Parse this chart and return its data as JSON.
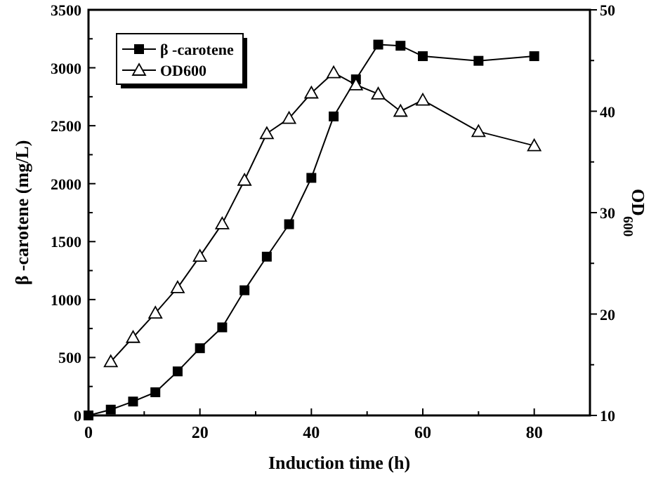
{
  "chart_data": {
    "type": "line",
    "xlabel": "Induction time (h)",
    "ylabel": "β -carotene (mg/L)",
    "y2label": "OD$_{600}$",
    "xlim": [
      0,
      90
    ],
    "xticks": [
      0,
      {
        "value": 10,
        "label": null
      },
      20,
      {
        "value": 30,
        "label": null
      },
      40,
      {
        "value": 50,
        "label": null
      },
      60,
      {
        "value": 70,
        "label": null
      },
      80,
      {
        "value": 90,
        "label": null
      }
    ],
    "ylim": [
      0,
      3500
    ],
    "yticks": [
      0,
      {
        "value": 250,
        "label": null
      },
      500,
      {
        "value": 750,
        "label": null
      },
      1000,
      {
        "value": 1250,
        "label": null
      },
      1500,
      {
        "value": 1750,
        "label": null
      },
      2000,
      {
        "value": 2250,
        "label": null
      },
      2500,
      {
        "value": 2750,
        "label": null
      },
      3000,
      {
        "value": 3250,
        "label": null
      },
      3500
    ],
    "y2lim": [
      10,
      50
    ],
    "y2ticks": [
      10,
      {
        "value": 15,
        "label": null
      },
      20,
      {
        "value": 25,
        "label": null
      },
      30,
      {
        "value": 35,
        "label": null
      },
      40,
      {
        "value": 45,
        "label": null
      },
      50
    ],
    "legend": "top left",
    "grid": false,
    "line_style": "solid",
    "series": [
      {
        "name": "β -carotene",
        "color": "#000000",
        "marker": "square",
        "x": [
          0,
          4,
          8,
          12,
          16,
          20,
          24,
          28,
          32,
          36,
          40,
          44,
          48,
          52,
          56,
          60,
          70,
          80
        ],
        "values": [
          0,
          50,
          120,
          200,
          380,
          580,
          760,
          1080,
          1370,
          1650,
          2050,
          2580,
          2900,
          3200,
          3190,
          3100,
          3060,
          3100
        ]
      },
      {
        "name": "OD600",
        "color": "#000000",
        "marker": "triangle",
        "axis": "y2",
        "x": [
          4,
          8,
          12,
          16,
          20,
          24,
          28,
          32,
          36,
          40,
          44,
          48,
          52,
          56,
          60,
          70,
          80
        ],
        "values": [
          15.3,
          17.7,
          20.1,
          22.6,
          25.7,
          28.9,
          33.2,
          37.8,
          39.3,
          41.8,
          43.8,
          42.6,
          41.7,
          40.0,
          41.1,
          38.0,
          36.6
        ]
      }
    ]
  }
}
